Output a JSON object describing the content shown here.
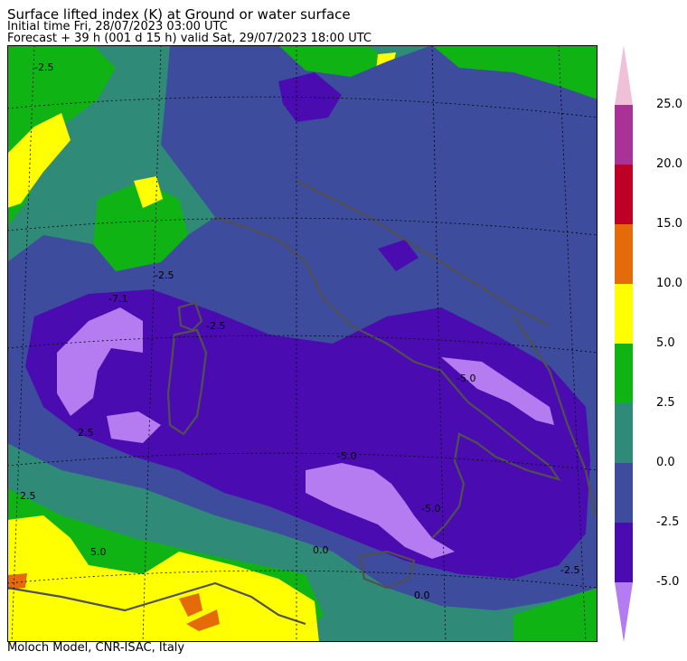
{
  "header": {
    "title": "Surface lifted index (K) at Ground or water surface",
    "initial_time": "Initial time  Fri, 28/07/2023  03:00 UTC",
    "forecast": "Forecast  +  39 h  (001 d 15 h)  valid Sat, 29/07/2023 18:00 UTC"
  },
  "footer": {
    "credit": "Moloch Model, CNR-ISAC, Italy"
  },
  "map": {
    "contour_labels": [
      "-5.0",
      "-5.0",
      "-5.0",
      "-2.5",
      "-2.5",
      "-2.5",
      "-2.5",
      "2.5",
      "2.5",
      "5.0",
      "0.0",
      "0.0",
      "-7.1"
    ],
    "coastline_color": "#505050"
  },
  "colorbar": {
    "levels": [
      "25.0",
      "20.0",
      "15.0",
      "10.0",
      "5.0",
      "2.5",
      "0.0",
      "-2.5",
      "-5.0"
    ],
    "top_color": "#f0c0d8",
    "bottom_color": "#b47cf0",
    "colors": [
      "#a83296",
      "#be0025",
      "#e46a0a",
      "#ffff00",
      "#0fb414",
      "#2f8a78",
      "#3d4c9c",
      "#4a0cb0"
    ]
  }
}
